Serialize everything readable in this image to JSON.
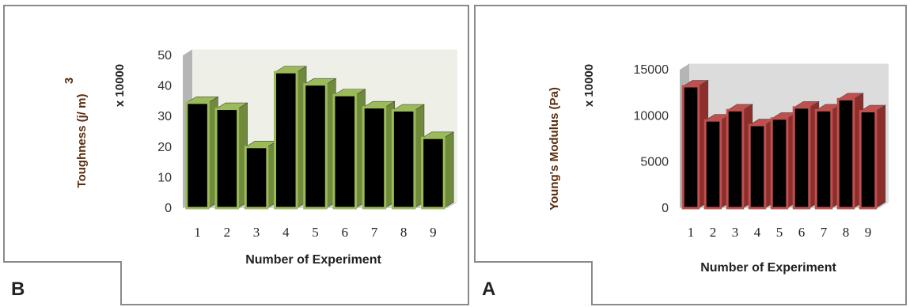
{
  "chart_data": [
    {
      "type": "bar",
      "panel_label": "B",
      "categories": [
        "1",
        "2",
        "3",
        "4",
        "5",
        "6",
        "7",
        "8",
        "9"
      ],
      "values": [
        34.5,
        32.5,
        20,
        44.5,
        40.5,
        37,
        33,
        32,
        23
      ],
      "xlabel": "Number of Experiment",
      "ylabel": "Toughness (j/ m)",
      "ylabel_superscript": "3",
      "multiplier": "x 10000",
      "ylim": [
        0,
        50
      ],
      "yticks": [
        "0",
        "10",
        "20",
        "30",
        "40",
        "50"
      ],
      "colors": {
        "bar": "#000000",
        "edge": "#9bbb59",
        "side": "#6f8a3a",
        "wall": "#eef0e8"
      }
    },
    {
      "type": "bar",
      "panel_label": "A",
      "categories": [
        "1",
        "2",
        "3",
        "4",
        "5",
        "6",
        "7",
        "8",
        "9"
      ],
      "values": [
        13200,
        9500,
        10600,
        9000,
        9700,
        10900,
        10600,
        11800,
        10500
      ],
      "xlabel": "Number of Experiment",
      "ylabel": "Young's Modulus  (Pa)",
      "multiplier": "x 10000",
      "ylim": [
        0,
        15000
      ],
      "yticks": [
        "0",
        "5000",
        "10000",
        "15000"
      ],
      "colors": {
        "bar": "#000000",
        "edge": "#c0504d",
        "side": "#8c2f2c",
        "wall": "#dcdcdc"
      }
    }
  ]
}
